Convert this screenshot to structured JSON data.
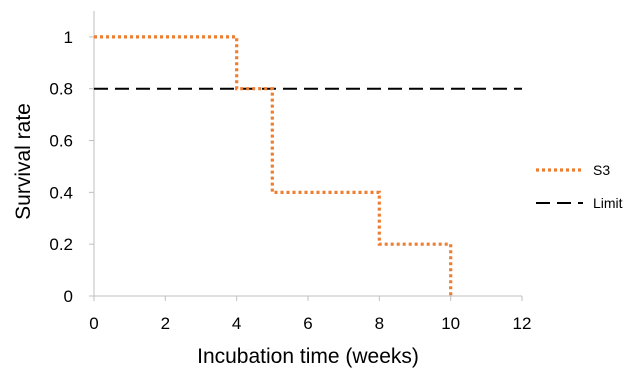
{
  "chart_data": {
    "type": "line",
    "xlabel": "Incubation time (weeks)",
    "ylabel": "Survival rate",
    "xlim": [
      0,
      12
    ],
    "ylim": [
      0,
      1.1
    ],
    "x_ticks": [
      "0",
      "2",
      "4",
      "6",
      "8",
      "10",
      "12"
    ],
    "y_ticks": [
      "0",
      "0.2",
      "0.4",
      "0.6",
      "0.8",
      "1"
    ],
    "grid": false,
    "legend_position": "right",
    "series": [
      {
        "name": "S3",
        "style": "dotted-step",
        "color": "#ed7d31",
        "points": [
          [
            0,
            1
          ],
          [
            4,
            1
          ],
          [
            4,
            0.8
          ],
          [
            5,
            0.8
          ],
          [
            5,
            0.4
          ],
          [
            8,
            0.4
          ],
          [
            8,
            0.2
          ],
          [
            10,
            0.2
          ],
          [
            10,
            0
          ]
        ]
      },
      {
        "name": "Limit",
        "style": "dashed",
        "color": "#000000",
        "points": [
          [
            0,
            0.8
          ],
          [
            12,
            0.8
          ]
        ]
      }
    ]
  }
}
